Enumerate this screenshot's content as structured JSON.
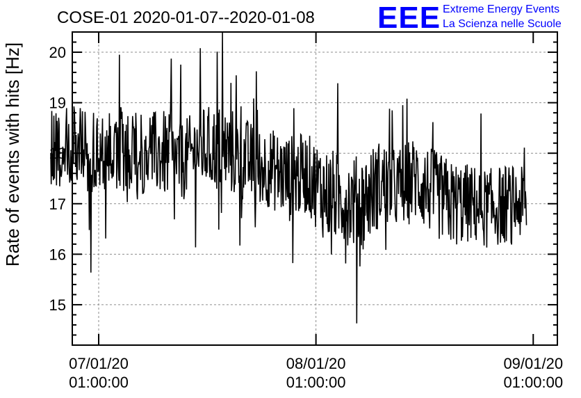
{
  "chart_data": {
    "type": "line",
    "title": "COSE-01 2020-01-07--2020-01-08",
    "xlabel": "",
    "ylabel": "Rate of events with hits [Hz]",
    "ylim": [
      14.2,
      20.4
    ],
    "y_ticks": [
      15,
      16,
      17,
      18,
      19,
      20
    ],
    "xlim": [
      "2020-01-06 22:05",
      "2020-01-09 03:40"
    ],
    "x_ticks": [
      {
        "date": "07/01/20",
        "time": "01:00:00"
      },
      {
        "date": "08/01/20",
        "time": "01:00:00"
      },
      {
        "date": "09/01/20",
        "time": "01:00:00"
      }
    ],
    "grid": true,
    "line_color": "#000000",
    "series": [
      {
        "x": [
          "2020-01-06 20:00",
          "2020-01-06 22:00",
          "2020-01-07 00:00",
          "2020-01-07 02:00",
          "2020-01-07 04:00",
          "2020-01-07 06:00",
          "2020-01-07 08:00",
          "2020-01-07 10:00",
          "2020-01-07 12:00",
          "2020-01-07 14:00",
          "2020-01-07 16:00",
          "2020-01-07 18:00",
          "2020-01-07 20:00",
          "2020-01-07 22:00",
          "2020-01-08 00:00",
          "2020-01-08 02:00",
          "2020-01-08 04:00",
          "2020-01-08 06:00",
          "2020-01-08 08:00",
          "2020-01-08 10:00",
          "2020-01-08 12:00",
          "2020-01-08 14:00",
          "2020-01-08 16:00",
          "2020-01-08 18:00",
          "2020-01-08 20:00",
          "2020-01-08 22:00",
          "2020-01-09 00:00"
        ],
        "values": [
          18.1,
          18.2,
          18.0,
          18.1,
          18.1,
          18.0,
          18.0,
          17.8,
          18.1,
          18.1,
          18.0,
          17.8,
          17.7,
          17.5,
          17.6,
          17.2,
          17.1,
          17.0,
          17.4,
          17.3,
          17.5,
          17.2,
          17.0,
          17.0,
          16.9,
          17.0,
          17.0
        ],
        "range": [
          1.0,
          1.1,
          1.0,
          1.0,
          1.1,
          1.0,
          1.1,
          1.0,
          1.0,
          1.1,
          1.1,
          1.0,
          1.0,
          1.1,
          1.0,
          1.2,
          1.1,
          1.2,
          1.1,
          1.0,
          1.1,
          1.1,
          1.1,
          1.0,
          1.0,
          1.0,
          0.9
        ]
      }
    ]
  },
  "logo": {
    "mark": "EEE",
    "line1": "Extreme Energy Events",
    "line2": "La Scienza nelle Scuole",
    "color": "#0000ff"
  }
}
